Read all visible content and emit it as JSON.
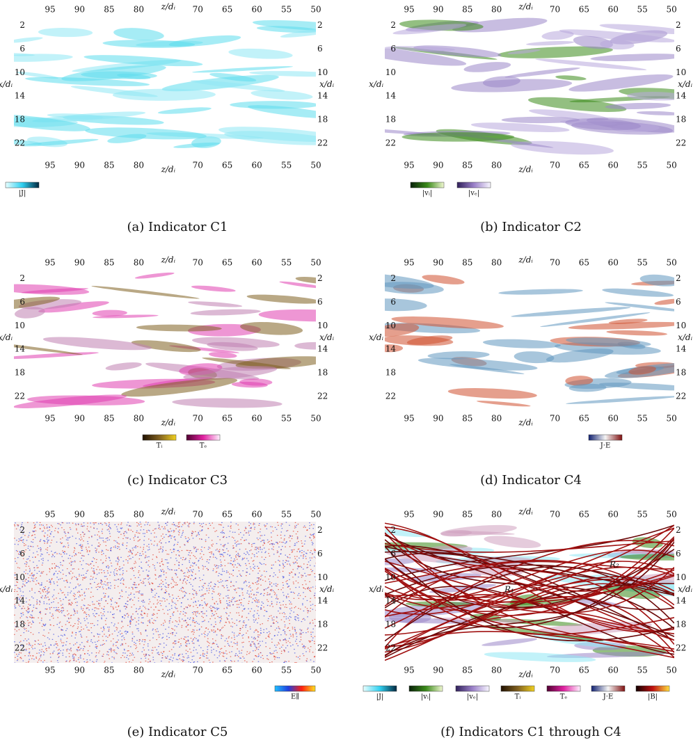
{
  "axes": {
    "x_label": "z/dᵢ",
    "y_label": "x/dᵢ",
    "xlim": [
      101,
      50
    ],
    "xticks": [
      95,
      90,
      85,
      80,
      70,
      65,
      60,
      55,
      50
    ],
    "ylim": [
      0.5,
      24.5
    ],
    "yticks": [
      2,
      6,
      10,
      14,
      18,
      22
    ]
  },
  "panels": [
    {
      "caption": "(a) Indicator C1",
      "colorbars": [
        {
          "label": "|J|",
          "colors": [
            "#e8ffff",
            "#30d0f0",
            "#002840"
          ]
        }
      ]
    },
    {
      "caption": "(b) Indicator C2",
      "colorbars": [
        {
          "label": "|vᵢ|",
          "colors": [
            "#082008",
            "#3a8a1a",
            "#f0f8d0"
          ]
        },
        {
          "label": "|vₑ|",
          "colors": [
            "#30205a",
            "#9a80c8",
            "#f8f6ff"
          ]
        }
      ]
    },
    {
      "caption": "(c) Indicator C3",
      "colorbars": [
        {
          "label": "Tᵢ",
          "colors": [
            "#201000",
            "#806020",
            "#f0d020"
          ]
        },
        {
          "label": "Tₑ",
          "colors": [
            "#500030",
            "#e020a0",
            "#fff0ff"
          ]
        }
      ]
    },
    {
      "caption": "(d) Indicator C4",
      "colorbars": [
        {
          "label": "J·E",
          "colors": [
            "#102070",
            "#f4f4f4",
            "#801010"
          ]
        }
      ]
    },
    {
      "caption": "(e) Indicator C5",
      "colorbars": [
        {
          "label": "E∥",
          "colors": [
            "#20c0ff",
            "#2040e0",
            "#ff2010",
            "#ffe020"
          ]
        }
      ]
    },
    {
      "caption": "(f) Indicators C1 through C4",
      "annotations": [
        "R₁",
        "R₂"
      ],
      "colorbars": [
        {
          "label": "|J|",
          "colors": [
            "#e8ffff",
            "#30d0f0",
            "#002840"
          ]
        },
        {
          "label": "|vᵢ|",
          "colors": [
            "#082008",
            "#3a8a1a",
            "#f0f8d0"
          ]
        },
        {
          "label": "|vₑ|",
          "colors": [
            "#30205a",
            "#9a80c8",
            "#f8f6ff"
          ]
        },
        {
          "label": "Tᵢ",
          "colors": [
            "#201000",
            "#806020",
            "#f0d020"
          ]
        },
        {
          "label": "Tₑ",
          "colors": [
            "#500030",
            "#e020a0",
            "#fff0ff"
          ]
        },
        {
          "label": "J·E",
          "colors": [
            "#102070",
            "#f4f4f4",
            "#801010"
          ]
        },
        {
          "label": "|B|",
          "colors": [
            "#100000",
            "#c01010",
            "#ffe040"
          ]
        }
      ]
    }
  ]
}
